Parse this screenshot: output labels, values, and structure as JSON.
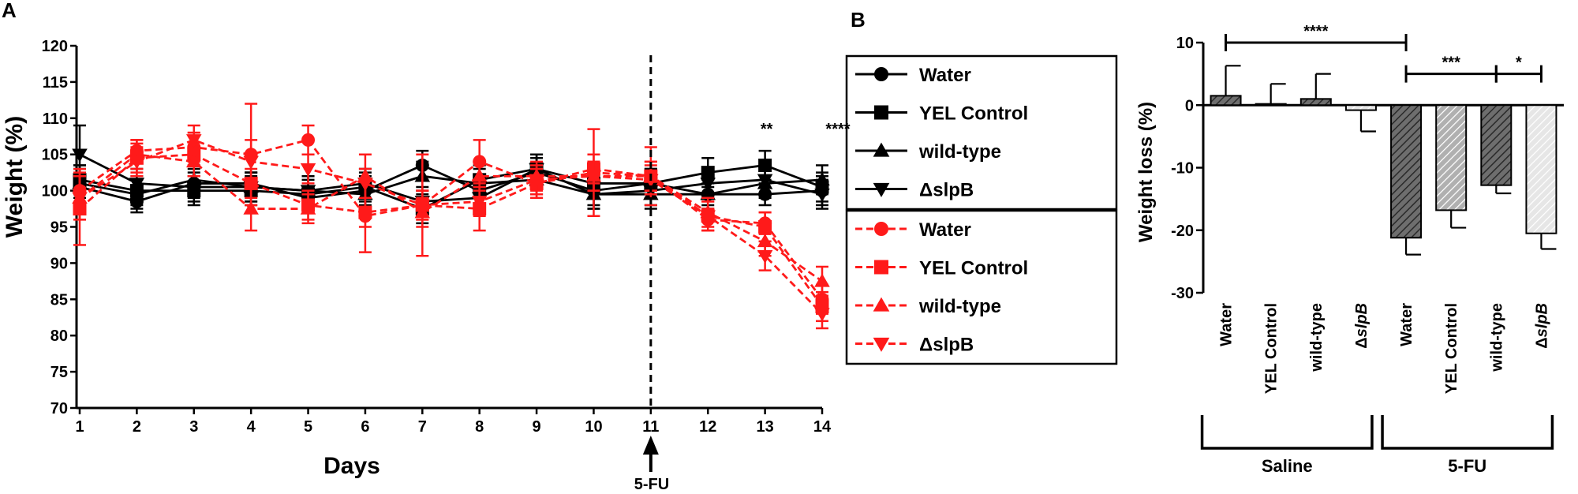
{
  "colors": {
    "saline": "#000000",
    "fu": "#ff1a1a",
    "bar_dark": "#5a5a5a",
    "bar_mid": "#9a9a9a",
    "bar_light": "#d6d6d6"
  },
  "chart_data": [
    {
      "type": "line",
      "panel_label": "A",
      "xlabel": "Days",
      "ylabel": "Weight (%)",
      "x": [
        1,
        2,
        3,
        4,
        5,
        6,
        7,
        8,
        9,
        10,
        11,
        12,
        13,
        14
      ],
      "ylim": [
        70,
        120
      ],
      "ytick_step": 5,
      "grid": false,
      "vline": {
        "x": 11,
        "label": "5-FU"
      },
      "significance": [
        {
          "x": 13,
          "text": "**"
        },
        {
          "x": 14,
          "text": "****"
        }
      ],
      "legend_title_groups": [
        "Saline",
        "5-FU"
      ],
      "series": [
        {
          "name": "Water",
          "group": "saline",
          "marker": "circle",
          "values": [
            100.5,
            98.5,
            101,
            101,
            99,
            100,
            103.5,
            100,
            102.5,
            100,
            101,
            99.5,
            99.5,
            100
          ],
          "errors": [
            3,
            1.5,
            2,
            1.5,
            1.5,
            2,
            2,
            2,
            2,
            2,
            2,
            1.5,
            1.5,
            2
          ]
        },
        {
          "name": "YEL Control",
          "group": "saline",
          "marker": "square",
          "values": [
            101.5,
            100,
            100,
            100,
            99.5,
            100.5,
            97.5,
            101.5,
            103,
            101,
            101,
            102.5,
            103.5,
            100.5
          ],
          "errors": [
            2,
            2,
            2,
            2,
            2,
            2,
            2,
            2,
            2,
            2,
            2,
            2,
            2,
            2
          ]
        },
        {
          "name": "wild-type",
          "group": "saline",
          "marker": "triangle-up",
          "values": [
            101,
            99.5,
            101.5,
            100.5,
            100,
            99.5,
            102,
            101,
            101.5,
            99.5,
            99.5,
            99.5,
            101,
            101.5
          ],
          "errors": [
            2,
            2,
            2,
            2,
            2,
            2,
            2,
            2,
            2,
            2,
            2,
            2,
            2,
            2
          ]
        },
        {
          "name": "ΔslpB",
          "group": "saline",
          "marker": "triangle-down",
          "values": [
            105,
            101,
            100.5,
            100.5,
            100,
            101,
            98.5,
            99,
            103,
            99.5,
            100,
            101,
            101.5,
            99.5
          ],
          "errors": [
            4,
            2,
            2,
            2,
            2,
            2,
            2,
            2,
            2,
            2,
            2,
            2,
            2,
            2
          ]
        },
        {
          "name": "Water",
          "group": "5-FU",
          "marker": "circle",
          "values": [
            100,
            105.5,
            106,
            105,
            107,
            96.5,
            98,
            104,
            101,
            102.5,
            102,
            96,
            95.5,
            85
          ],
          "errors": [
            3,
            1.5,
            2,
            7,
            2,
            5,
            7,
            3,
            2,
            6,
            4,
            1.5,
            1.5,
            2
          ]
        },
        {
          "name": "YEL Control",
          "group": "5-FU",
          "marker": "square",
          "values": [
            97.5,
            104.5,
            105,
            101,
            98,
            97,
            98,
            97.5,
            101,
            103,
            102,
            96.5,
            95,
            84
          ],
          "errors": [
            5,
            2,
            3,
            2,
            2,
            2,
            2,
            3,
            2,
            2,
            2,
            2,
            2,
            2
          ]
        },
        {
          "name": "wild-type",
          "group": "5-FU",
          "marker": "triangle-up",
          "values": [
            99,
            105,
            104,
            97.5,
            97.5,
            102,
            97,
            102,
            102,
            102,
            102,
            97,
            93,
            87.5
          ],
          "errors": [
            3,
            2,
            2,
            3,
            2,
            3,
            2,
            2,
            2,
            2,
            2,
            2,
            2,
            2
          ]
        },
        {
          "name": "ΔslpB",
          "group": "5-FU",
          "marker": "triangle-down",
          "values": [
            99,
            104,
            107,
            104,
            103,
            101,
            98,
            98.5,
            101.5,
            102,
            101.5,
            96.5,
            91,
            83
          ],
          "errors": [
            3,
            2,
            2,
            3,
            2,
            2,
            2,
            2,
            2,
            2,
            2,
            2,
            2,
            2
          ]
        }
      ]
    },
    {
      "type": "bar",
      "panel_label": "B",
      "ylabel": "Weight loss (%)",
      "ylim": [
        -30,
        10
      ],
      "ytick_step": 10,
      "categories": [
        "Water",
        "YEL Control",
        "wild-type",
        "ΔslpB",
        "Water",
        "YEL Control",
        "wild-type",
        "ΔslpB"
      ],
      "values": [
        1.5,
        0.2,
        1.0,
        -0.8,
        -21.2,
        -16.8,
        -12.8,
        -20.5
      ],
      "errors": [
        4.8,
        3.2,
        4.0,
        3.4,
        2.7,
        2.8,
        1.3,
        2.5
      ],
      "groups": [
        {
          "name": "Saline",
          "from": 0,
          "to": 3
        },
        {
          "name": "5-FU",
          "from": 4,
          "to": 7
        }
      ],
      "significance": [
        {
          "from": 0,
          "to": 4,
          "y": 10,
          "text": "****"
        },
        {
          "from": 4,
          "to": 6,
          "y": 5,
          "text": "***"
        },
        {
          "from": 6,
          "to": 7,
          "y": 5,
          "text": "*"
        }
      ]
    }
  ]
}
